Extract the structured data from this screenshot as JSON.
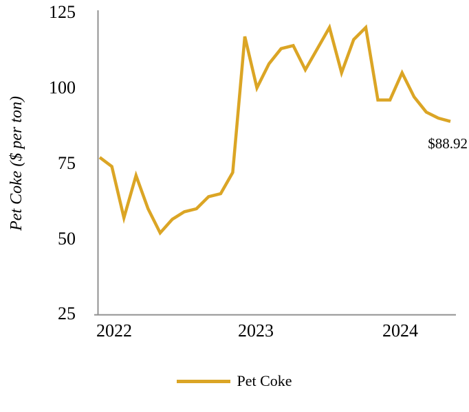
{
  "chart": {
    "ylabel": "Pet Coke ($ per ton)",
    "legend_label": "Pet Coke",
    "end_point_label": "$88.92",
    "line_color": "#DBA525",
    "axis_color": "#909090",
    "yticks_display": [
      "125",
      "100",
      "75",
      "50",
      "25"
    ],
    "xticks_display": [
      "2022",
      "2023",
      "2024"
    ]
  },
  "chart_data": {
    "type": "line",
    "title": "",
    "xlabel": "",
    "ylabel": "Pet Coke ($ per ton)",
    "x": [
      "Dec-2021",
      "Jan-2022",
      "Feb-2022",
      "Mar-2022",
      "Apr-2022",
      "May-2022",
      "Jun-2022",
      "Jul-2022",
      "Aug-2022",
      "Sep-2022",
      "Oct-2022",
      "Nov-2022",
      "Dec-2022",
      "Jan-2023",
      "Feb-2023",
      "Mar-2023",
      "Apr-2023",
      "May-2023",
      "Jun-2023",
      "Jul-2023",
      "Aug-2023",
      "Sep-2023",
      "Oct-2023",
      "Nov-2023",
      "Dec-2023",
      "Jan-2024",
      "Feb-2024",
      "Mar-2024",
      "Apr-2024",
      "May-2024"
    ],
    "series": [
      {
        "name": "Pet Coke",
        "values": [
          77,
          74,
          57,
          71,
          60,
          52,
          56.5,
          59,
          60,
          64,
          65,
          72,
          117,
          100,
          108,
          113,
          114,
          106,
          113,
          120,
          105,
          116,
          120,
          96,
          96,
          105,
          97,
          92,
          90,
          88.92
        ]
      }
    ],
    "ylim": [
      25,
      125
    ],
    "yticks": [
      25,
      50,
      75,
      100,
      125
    ],
    "xtick_labels": [
      "2022",
      "2023",
      "2024"
    ],
    "grid": false,
    "legend_position": "bottom-center",
    "annotations": [
      {
        "text": "$88.92",
        "attached_to": "last-point"
      }
    ]
  }
}
